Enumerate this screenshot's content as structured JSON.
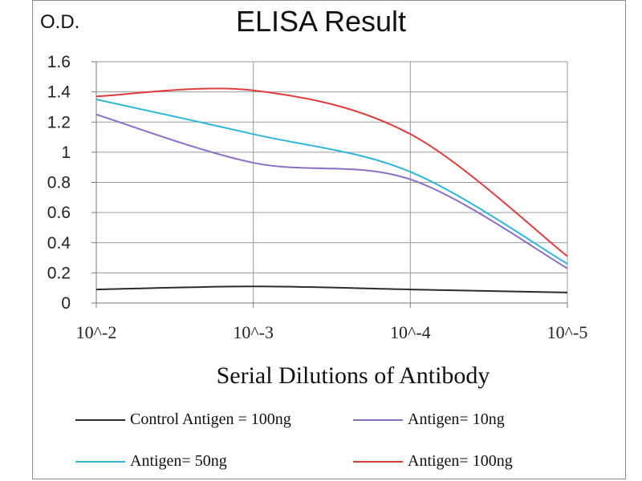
{
  "chart_data": {
    "type": "line",
    "title": "ELISA Result",
    "xlabel": "Serial Dilutions  of Antibody",
    "ylabel": "O.D.",
    "categories": [
      "10^-2",
      "10^-3",
      "10^-4",
      "10^-5"
    ],
    "ylim": [
      0,
      1.6
    ],
    "yticks": [
      "0",
      "0.2",
      "0.4",
      "0.6",
      "0.8",
      "1",
      "1.2",
      "1.4",
      "1.6"
    ],
    "grid": true,
    "legend_position": "bottom",
    "series": [
      {
        "name": "Control Antigen = 100ng",
        "color": "#2b2b2b",
        "values": [
          0.09,
          0.11,
          0.09,
          0.07
        ]
      },
      {
        "name": "Antigen= 10ng",
        "color": "#8a6fc4",
        "values": [
          1.25,
          0.93,
          0.82,
          0.23
        ]
      },
      {
        "name": "Antigen= 50ng",
        "color": "#2cb6dc",
        "values": [
          1.35,
          1.12,
          0.87,
          0.26
        ]
      },
      {
        "name": "Antigen= 100ng",
        "color": "#e03c3c",
        "values": [
          1.37,
          1.41,
          1.12,
          0.31
        ]
      }
    ]
  }
}
